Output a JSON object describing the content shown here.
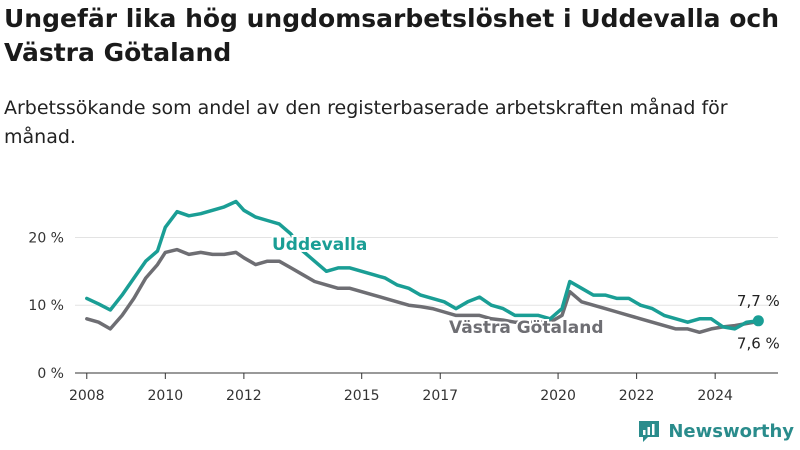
{
  "title": "Ungefär lika hög ungdomsarbetslöshet i Uddevalla och Västra Götaland",
  "subtitle": "Arbetssökande som andel av den registerbaserade arbetskraften månad för månad.",
  "brand": {
    "name": "Newsworthy",
    "color": "#2a8c8c"
  },
  "chart_data": {
    "type": "line",
    "title": "Ungefär lika hög ungdomsarbetslöshet i Uddevalla och Västra Götaland",
    "xlabel": "",
    "ylabel": "",
    "xlim": [
      2007.7,
      2025.6
    ],
    "ylim": [
      0,
      27
    ],
    "grid": true,
    "y_ticks": [
      0,
      10,
      20
    ],
    "y_tick_labels": [
      "0 %",
      "10 %",
      "20 %"
    ],
    "x_ticks": [
      2008,
      2010,
      2012,
      2015,
      2017,
      2020,
      2022,
      2024
    ],
    "x_tick_labels": [
      "2008",
      "2010",
      "2012",
      "2015",
      "2017",
      "2020",
      "2022",
      "2024"
    ],
    "series": [
      {
        "name": "Uddevalla",
        "color": "#1a9e95",
        "end_label": "7,7 %",
        "x": [
          2008.0,
          2008.3,
          2008.6,
          2008.9,
          2009.2,
          2009.5,
          2009.8,
          2010.0,
          2010.3,
          2010.6,
          2010.9,
          2011.2,
          2011.5,
          2011.8,
          2012.0,
          2012.3,
          2012.6,
          2012.9,
          2013.2,
          2013.5,
          2013.8,
          2014.1,
          2014.4,
          2014.7,
          2015.0,
          2015.3,
          2015.6,
          2015.9,
          2016.2,
          2016.5,
          2016.8,
          2017.1,
          2017.4,
          2017.7,
          2018.0,
          2018.3,
          2018.6,
          2018.9,
          2019.2,
          2019.5,
          2019.8,
          2020.1,
          2020.3,
          2020.6,
          2020.9,
          2021.2,
          2021.5,
          2021.8,
          2022.1,
          2022.4,
          2022.7,
          2023.0,
          2023.3,
          2023.6,
          2023.9,
          2024.2,
          2024.5,
          2024.8,
          2025.1
        ],
        "y": [
          11.0,
          10.2,
          9.3,
          11.5,
          14.0,
          16.5,
          18.0,
          21.5,
          23.8,
          23.2,
          23.5,
          24.0,
          24.5,
          25.3,
          24.0,
          23.0,
          22.5,
          22.0,
          20.5,
          18.0,
          16.5,
          15.0,
          15.5,
          15.5,
          15.0,
          14.5,
          14.0,
          13.0,
          12.5,
          11.5,
          11.0,
          10.5,
          9.5,
          10.5,
          11.2,
          10.0,
          9.5,
          8.5,
          8.5,
          8.5,
          8.0,
          9.5,
          13.5,
          12.5,
          11.5,
          11.5,
          11.0,
          11.0,
          10.0,
          9.5,
          8.5,
          8.0,
          7.5,
          8.0,
          8.0,
          6.8,
          6.5,
          7.5,
          7.7
        ]
      },
      {
        "name": "Västra Götaland",
        "color": "#6e6e73",
        "end_label": "7,6 %",
        "x": [
          2008.0,
          2008.3,
          2008.6,
          2008.9,
          2009.2,
          2009.5,
          2009.8,
          2010.0,
          2010.3,
          2010.6,
          2010.9,
          2011.2,
          2011.5,
          2011.8,
          2012.0,
          2012.3,
          2012.6,
          2012.9,
          2013.2,
          2013.5,
          2013.8,
          2014.1,
          2014.4,
          2014.7,
          2015.0,
          2015.3,
          2015.6,
          2015.9,
          2016.2,
          2016.5,
          2016.8,
          2017.1,
          2017.4,
          2017.7,
          2018.0,
          2018.3,
          2018.6,
          2018.9,
          2019.2,
          2019.5,
          2019.8,
          2020.1,
          2020.3,
          2020.6,
          2020.9,
          2021.2,
          2021.5,
          2021.8,
          2022.1,
          2022.4,
          2022.7,
          2023.0,
          2023.3,
          2023.6,
          2023.9,
          2024.2,
          2024.5,
          2024.8,
          2025.1
        ],
        "y": [
          8.0,
          7.5,
          6.5,
          8.5,
          11.0,
          14.0,
          16.0,
          17.8,
          18.2,
          17.5,
          17.8,
          17.5,
          17.5,
          17.8,
          17.0,
          16.0,
          16.5,
          16.5,
          15.5,
          14.5,
          13.5,
          13.0,
          12.5,
          12.5,
          12.0,
          11.5,
          11.0,
          10.5,
          10.0,
          9.8,
          9.5,
          9.0,
          8.5,
          8.5,
          8.5,
          8.0,
          7.8,
          7.5,
          7.5,
          7.5,
          7.5,
          8.5,
          12.0,
          10.5,
          10.0,
          9.5,
          9.0,
          8.5,
          8.0,
          7.5,
          7.0,
          6.5,
          6.5,
          6.0,
          6.5,
          6.8,
          7.0,
          7.3,
          7.6
        ]
      }
    ]
  }
}
